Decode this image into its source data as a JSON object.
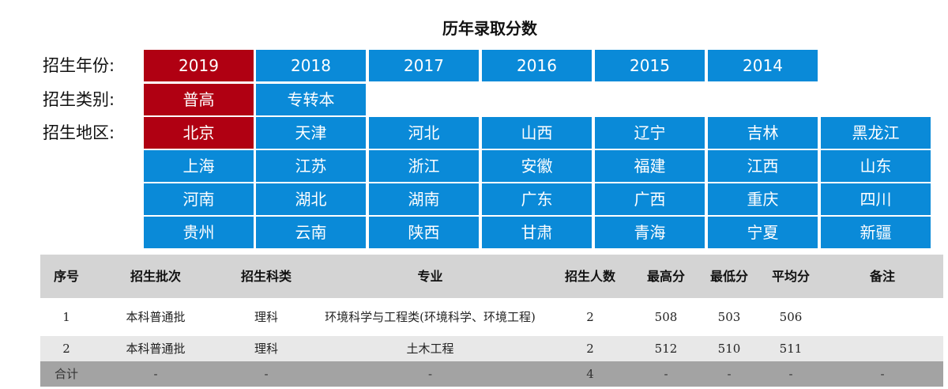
{
  "title": "历年录取分数",
  "filters": {
    "year": {
      "label": "招生年份:",
      "options": [
        "2019",
        "2018",
        "2017",
        "2016",
        "2015",
        "2014"
      ],
      "selected": "2019"
    },
    "category": {
      "label": "招生类别:",
      "options": [
        "普高",
        "专转本"
      ],
      "selected": "普高"
    },
    "region": {
      "label": "招生地区:",
      "options": [
        "北京",
        "天津",
        "河北",
        "山西",
        "辽宁",
        "吉林",
        "黑龙江",
        "上海",
        "江苏",
        "浙江",
        "安徽",
        "福建",
        "江西",
        "山东",
        "河南",
        "湖北",
        "湖南",
        "广东",
        "广西",
        "重庆",
        "四川",
        "贵州",
        "云南",
        "陕西",
        "甘肃",
        "青海",
        "宁夏",
        "新疆"
      ],
      "selected": "北京"
    }
  },
  "colors": {
    "button": "#0a8ad8",
    "selected": "#b00012",
    "header_bg": "#d4d4d4",
    "total_bg": "#a3a3a3"
  },
  "table": {
    "headers": [
      "序号",
      "招生批次",
      "招生科类",
      "专业",
      "招生人数",
      "最高分",
      "最低分",
      "平均分",
      "备注"
    ],
    "rows": [
      [
        "1",
        "本科普通批",
        "理科",
        "环境科学与工程类(环境科学、环境工程)",
        "2",
        "508",
        "503",
        "506",
        ""
      ],
      [
        "2",
        "本科普通批",
        "理科",
        "土木工程",
        "2",
        "512",
        "510",
        "511",
        ""
      ]
    ],
    "total": [
      "合计",
      "-",
      "-",
      "-",
      "4",
      "-",
      "-",
      "-",
      "-"
    ]
  }
}
